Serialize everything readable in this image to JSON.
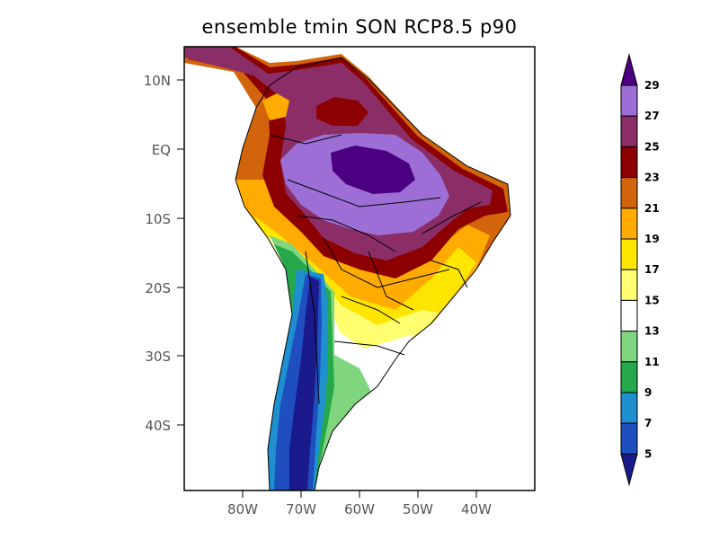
{
  "title": "ensemble tmin SON RCP8.5 p90",
  "map": {
    "lat_ticks": [
      "10N",
      "EQ",
      "10S",
      "20S",
      "30S",
      "40S"
    ],
    "lon_ticks": [
      "80W",
      "70W",
      "60W",
      "50W",
      "40W"
    ]
  },
  "colorbar": {
    "labels": [
      "5",
      "7",
      "9",
      "11",
      "13",
      "15",
      "17",
      "19",
      "21",
      "23",
      "25",
      "27",
      "29"
    ],
    "colors": [
      "#1a1a8c",
      "#1f4fbf",
      "#1e90d0",
      "#25a84a",
      "#7fd67f",
      "#ffffff",
      "#ffff70",
      "#ffe600",
      "#ffab00",
      "#d2650b",
      "#8c0000",
      "#8b2e68",
      "#9d6fd6",
      "#4b0082"
    ]
  }
}
